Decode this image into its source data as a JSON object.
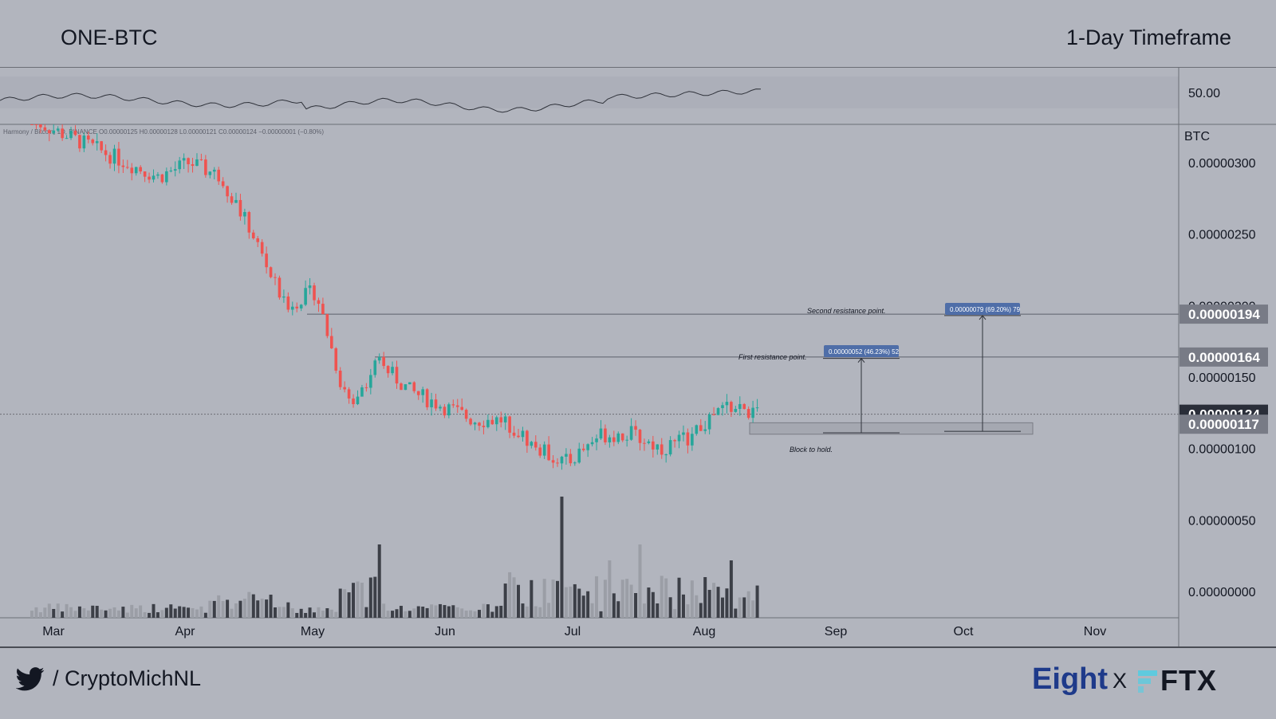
{
  "header": {
    "pair": "ONE-BTC",
    "timeframe": "1-Day Timeframe"
  },
  "footer": {
    "twitter_handle": "/ CryptoMichNL",
    "brand_left": "Eight",
    "separator": "X",
    "brand_right": "FTX"
  },
  "colors": {
    "up": "#26a69a",
    "down": "#ef5350",
    "volume_light": "#9b9ea6",
    "volume_dark": "#3c3f47",
    "price_tag": "#787b86",
    "current_tag": "#2a2e39",
    "annotation_box": "#4f6ea8"
  },
  "symbol_info": "Harmony / Bitcoin, 1D, BINANCE  O0.00000125  H0.00000128  L0.00000121  C0.00000124  −0.00000001 (−0.80%)",
  "rsi": {
    "level_label": "50.00"
  },
  "annotations": {
    "second_resistance": "Second resistance point.",
    "first_resistance": "First resistance point.",
    "block": "Block to hold.",
    "box_first": "0.00000052 (46.23%) 52",
    "box_second": "0.00000079 (69.20%) 79"
  },
  "chart_data": {
    "type": "candlestick",
    "title": "ONE-BTC",
    "unit": "BTC",
    "ylim": [
      0,
      3.2e-06
    ],
    "y_ticks": [
      "0.00000300",
      "0.00000250",
      "0.00000200",
      "0.00000150",
      "0.00000100",
      "0.00000050",
      "0.00000000"
    ],
    "y_tick_values": [
      3e-06,
      2.5e-06,
      2e-06,
      1.5e-06,
      1e-06,
      5e-07,
      0
    ],
    "x_ticks": [
      "Mar",
      "Apr",
      "May",
      "Jun",
      "Jul",
      "Aug",
      "Sep",
      "Oct",
      "Nov"
    ],
    "price_tags": [
      {
        "label": "0.00000194",
        "value": 1.94e-06,
        "style": "level"
      },
      {
        "label": "0.00000164",
        "value": 1.64e-06,
        "style": "level"
      },
      {
        "label": "0.00000124",
        "value": 1.24e-06,
        "style": "current"
      },
      {
        "label": "0.00000117",
        "value": 1.17e-06,
        "style": "level"
      }
    ],
    "resistance_levels": [
      1.94e-06,
      1.64e-06
    ],
    "support_zone": [
      1.1e-06,
      1.18e-06
    ],
    "close_path": [
      {
        "m": "Mar",
        "close": 3.3e-06
      },
      {
        "m": "Mar",
        "close": 3.2e-06
      },
      {
        "m": "Apr",
        "close": 3.1e-06
      },
      {
        "m": "Apr",
        "close": 3e-06
      },
      {
        "m": "Apr",
        "close": 2.9e-06
      },
      {
        "m": "Apr",
        "close": 3e-06
      },
      {
        "m": "Apr",
        "close": 2.9e-06
      },
      {
        "m": "May",
        "close": 2.5e-06
      },
      {
        "m": "May",
        "close": 2e-06
      },
      {
        "m": "May",
        "close": 2.1e-06
      },
      {
        "m": "May",
        "close": 1.3e-06
      },
      {
        "m": "Jun",
        "close": 1.6e-06
      },
      {
        "m": "Jun",
        "close": 1.4e-06
      },
      {
        "m": "Jun",
        "close": 1.3e-06
      },
      {
        "m": "Jun",
        "close": 1.2e-06
      },
      {
        "m": "Jun",
        "close": 1.2e-06
      },
      {
        "m": "Jul",
        "close": 1e-06
      },
      {
        "m": "Jul",
        "close": 9e-07
      },
      {
        "m": "Jul",
        "close": 1.1e-06
      },
      {
        "m": "Jul",
        "close": 1.1e-06
      },
      {
        "m": "Aug",
        "close": 1e-06
      },
      {
        "m": "Aug",
        "close": 1.1e-06
      },
      {
        "m": "Aug",
        "close": 1.3e-06
      },
      {
        "m": "Aug",
        "close": 1.24e-06
      }
    ]
  }
}
